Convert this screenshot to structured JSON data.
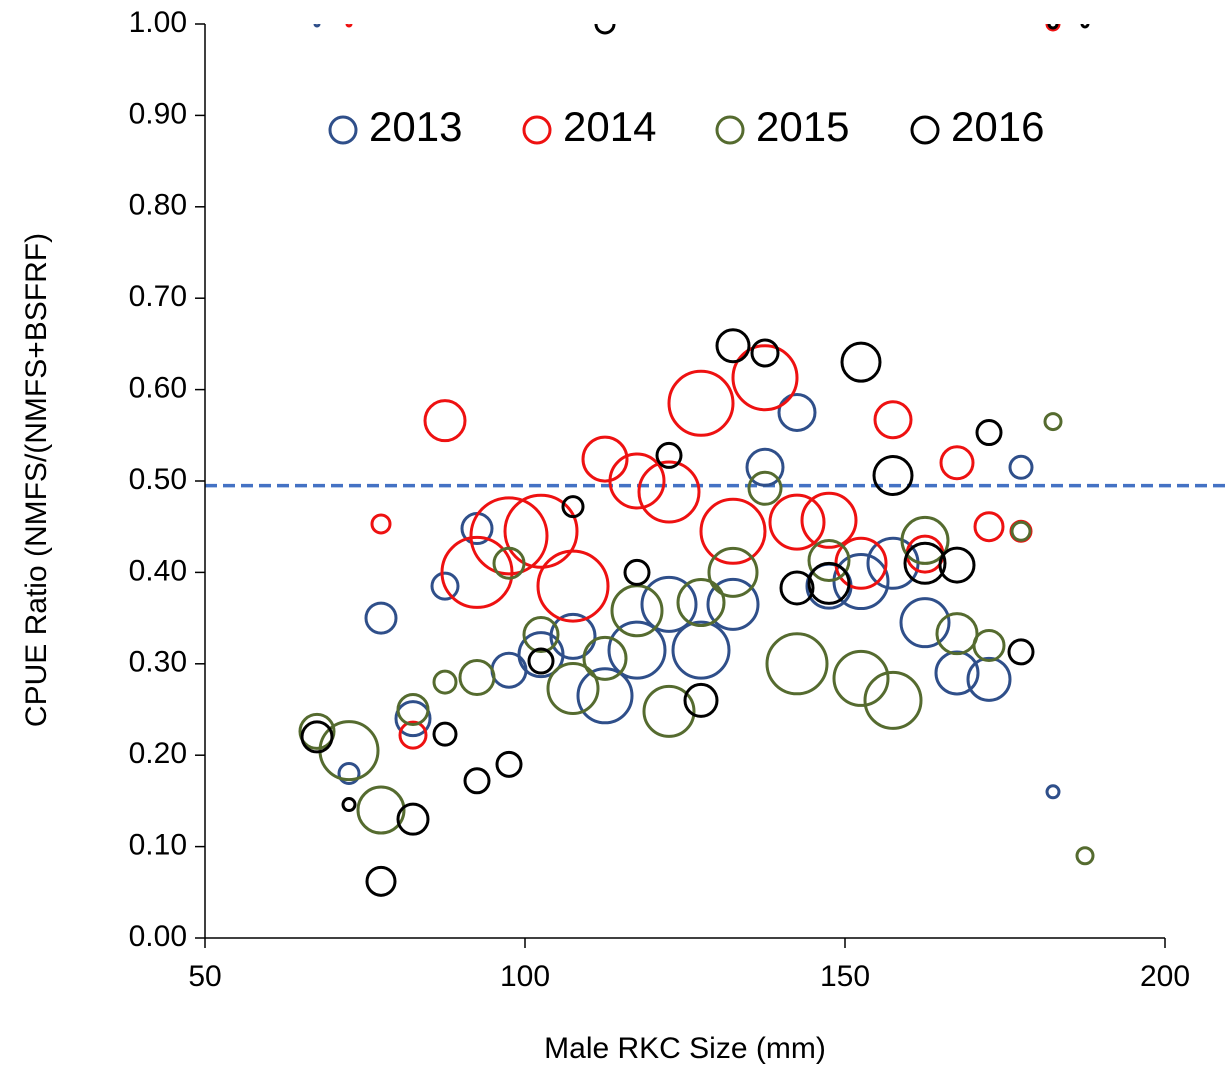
{
  "chart_data": {
    "type": "bubble",
    "xlabel": "Male RKC Size (mm)",
    "ylabel": "CPUE Ratio (NMFS/(NMFS+BSFRF)",
    "xlim": [
      50,
      200
    ],
    "ylim": [
      0,
      1
    ],
    "xticks": [
      50,
      100,
      150,
      200
    ],
    "yticks": [
      {
        "value": 0,
        "label": "0.00"
      },
      {
        "value": 0.1,
        "label": "0.10"
      },
      {
        "value": 0.2,
        "label": "0.20"
      },
      {
        "value": 0.3,
        "label": "0.30"
      },
      {
        "value": 0.4,
        "label": "0.40"
      },
      {
        "value": 0.5,
        "label": "0.50"
      },
      {
        "value": 0.6,
        "label": "0.60"
      },
      {
        "value": 0.7,
        "label": "0.70"
      },
      {
        "value": 0.8,
        "label": "0.80"
      },
      {
        "value": 0.9,
        "label": "0.90"
      },
      {
        "value": 1,
        "label": "1.00"
      }
    ],
    "reference_line": {
      "value": 0.495,
      "color": "#4472c4"
    },
    "legend": "top",
    "series": [
      {
        "name": "2013",
        "color": "#2f4f8a",
        "x": [
          67.5,
          72.5,
          77.5,
          82.5,
          87.5,
          92.5,
          97.5,
          102.5,
          107.5,
          112.5,
          117.5,
          122.5,
          127.5,
          132.5,
          137.5,
          142.5,
          147.5,
          152.5,
          157.5,
          162.5,
          167.5,
          172.5,
          177.5,
          182.5
        ],
        "values": [
          1.0,
          0.18,
          0.35,
          0.24,
          0.385,
          0.448,
          0.293,
          0.31,
          0.33,
          0.265,
          0.315,
          0.365,
          0.315,
          0.365,
          0.515,
          0.575,
          0.385,
          0.39,
          0.41,
          0.345,
          0.29,
          0.283,
          0.515,
          0.16
        ],
        "sizes": [
          2,
          10,
          15,
          17,
          13,
          15,
          17,
          22,
          22,
          27,
          28,
          27,
          28,
          25,
          18,
          18,
          22,
          27,
          25,
          24,
          21,
          21,
          11,
          6
        ]
      },
      {
        "name": "2014",
        "color": "#ee1111",
        "x": [
          72.5,
          77.5,
          82.5,
          87.5,
          92.5,
          97.5,
          102.5,
          107.5,
          112.5,
          117.5,
          122.5,
          127.5,
          132.5,
          137.5,
          142.5,
          147.5,
          152.5,
          157.5,
          162.5,
          167.5,
          172.5,
          177.5,
          182.5
        ],
        "values": [
          1.0,
          0.453,
          0.222,
          0.566,
          0.4,
          0.44,
          0.445,
          0.385,
          0.524,
          0.5,
          0.488,
          0.585,
          0.445,
          0.613,
          0.455,
          0.457,
          0.41,
          0.567,
          0.42,
          0.52,
          0.45,
          0.445,
          1.0
        ],
        "sizes": [
          2,
          9,
          13,
          20,
          35,
          38,
          36,
          35,
          22,
          27,
          30,
          32,
          32,
          32,
          27,
          27,
          25,
          18,
          18,
          16,
          14,
          10,
          6
        ]
      },
      {
        "name": "2015",
        "color": "#556b2f",
        "x": [
          67.5,
          72.5,
          77.5,
          82.5,
          87.5,
          92.5,
          97.5,
          102.5,
          107.5,
          112.5,
          117.5,
          122.5,
          127.5,
          132.5,
          137.5,
          142.5,
          147.5,
          152.5,
          157.5,
          162.5,
          167.5,
          172.5,
          177.5,
          182.5,
          187.5
        ],
        "values": [
          0.226,
          0.205,
          0.14,
          0.25,
          0.28,
          0.285,
          0.41,
          0.332,
          0.273,
          0.306,
          0.358,
          0.248,
          0.367,
          0.4,
          0.492,
          0.3,
          0.413,
          0.284,
          0.26,
          0.435,
          0.333,
          0.32,
          0.445,
          0.565,
          0.09
        ],
        "sizes": [
          17,
          29,
          23,
          15,
          11,
          17,
          15,
          17,
          25,
          21,
          25,
          25,
          23,
          24,
          16,
          30,
          20,
          27,
          28,
          23,
          20,
          15,
          9,
          8,
          8
        ]
      },
      {
        "name": "2016",
        "color": "#000000",
        "x": [
          67.5,
          72.5,
          77.5,
          82.5,
          87.5,
          92.5,
          97.5,
          102.5,
          107.5,
          112.5,
          117.5,
          122.5,
          127.5,
          132.5,
          137.5,
          142.5,
          147.5,
          152.5,
          157.5,
          162.5,
          167.5,
          172.5,
          177.5,
          182.5,
          187.5
        ],
        "values": [
          0.22,
          0.146,
          0.062,
          0.13,
          0.223,
          0.172,
          0.19,
          0.303,
          0.472,
          1.0,
          0.4,
          0.528,
          0.26,
          0.648,
          0.64,
          0.383,
          0.388,
          0.63,
          0.506,
          0.41,
          0.408,
          0.553,
          0.313,
          1.0,
          1.0
        ],
        "sizes": [
          15,
          6,
          14,
          15,
          11,
          12,
          12,
          12,
          10,
          9,
          12,
          12,
          16,
          16,
          13,
          16,
          20,
          19,
          19,
          20,
          17,
          12,
          12,
          4,
          3
        ]
      }
    ]
  }
}
